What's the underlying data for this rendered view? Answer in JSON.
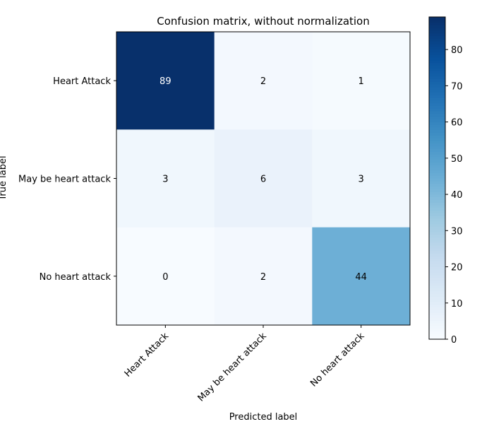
{
  "chart_data": {
    "type": "heatmap",
    "title": "Confusion matrix, without normalization",
    "xlabel": "Predicted label",
    "ylabel": "True label",
    "x_categories": [
      "Heart Attack",
      "May be heart attack",
      "No heart attack"
    ],
    "y_categories": [
      "Heart Attack",
      "May be heart attack",
      "No heart attack"
    ],
    "values": [
      [
        89,
        2,
        1
      ],
      [
        3,
        6,
        3
      ],
      [
        0,
        2,
        44
      ]
    ],
    "colormap": "Blues",
    "vmin": 0,
    "vmax": 89,
    "colorbar_ticks": [
      0,
      10,
      20,
      30,
      40,
      50,
      60,
      70,
      80
    ],
    "colorbar_ticks_text": [
      "0",
      "10",
      "20",
      "30",
      "40",
      "50",
      "60",
      "70",
      "80"
    ],
    "label_colors": {
      "light": "#000000",
      "dark": "#ffffff"
    }
  }
}
